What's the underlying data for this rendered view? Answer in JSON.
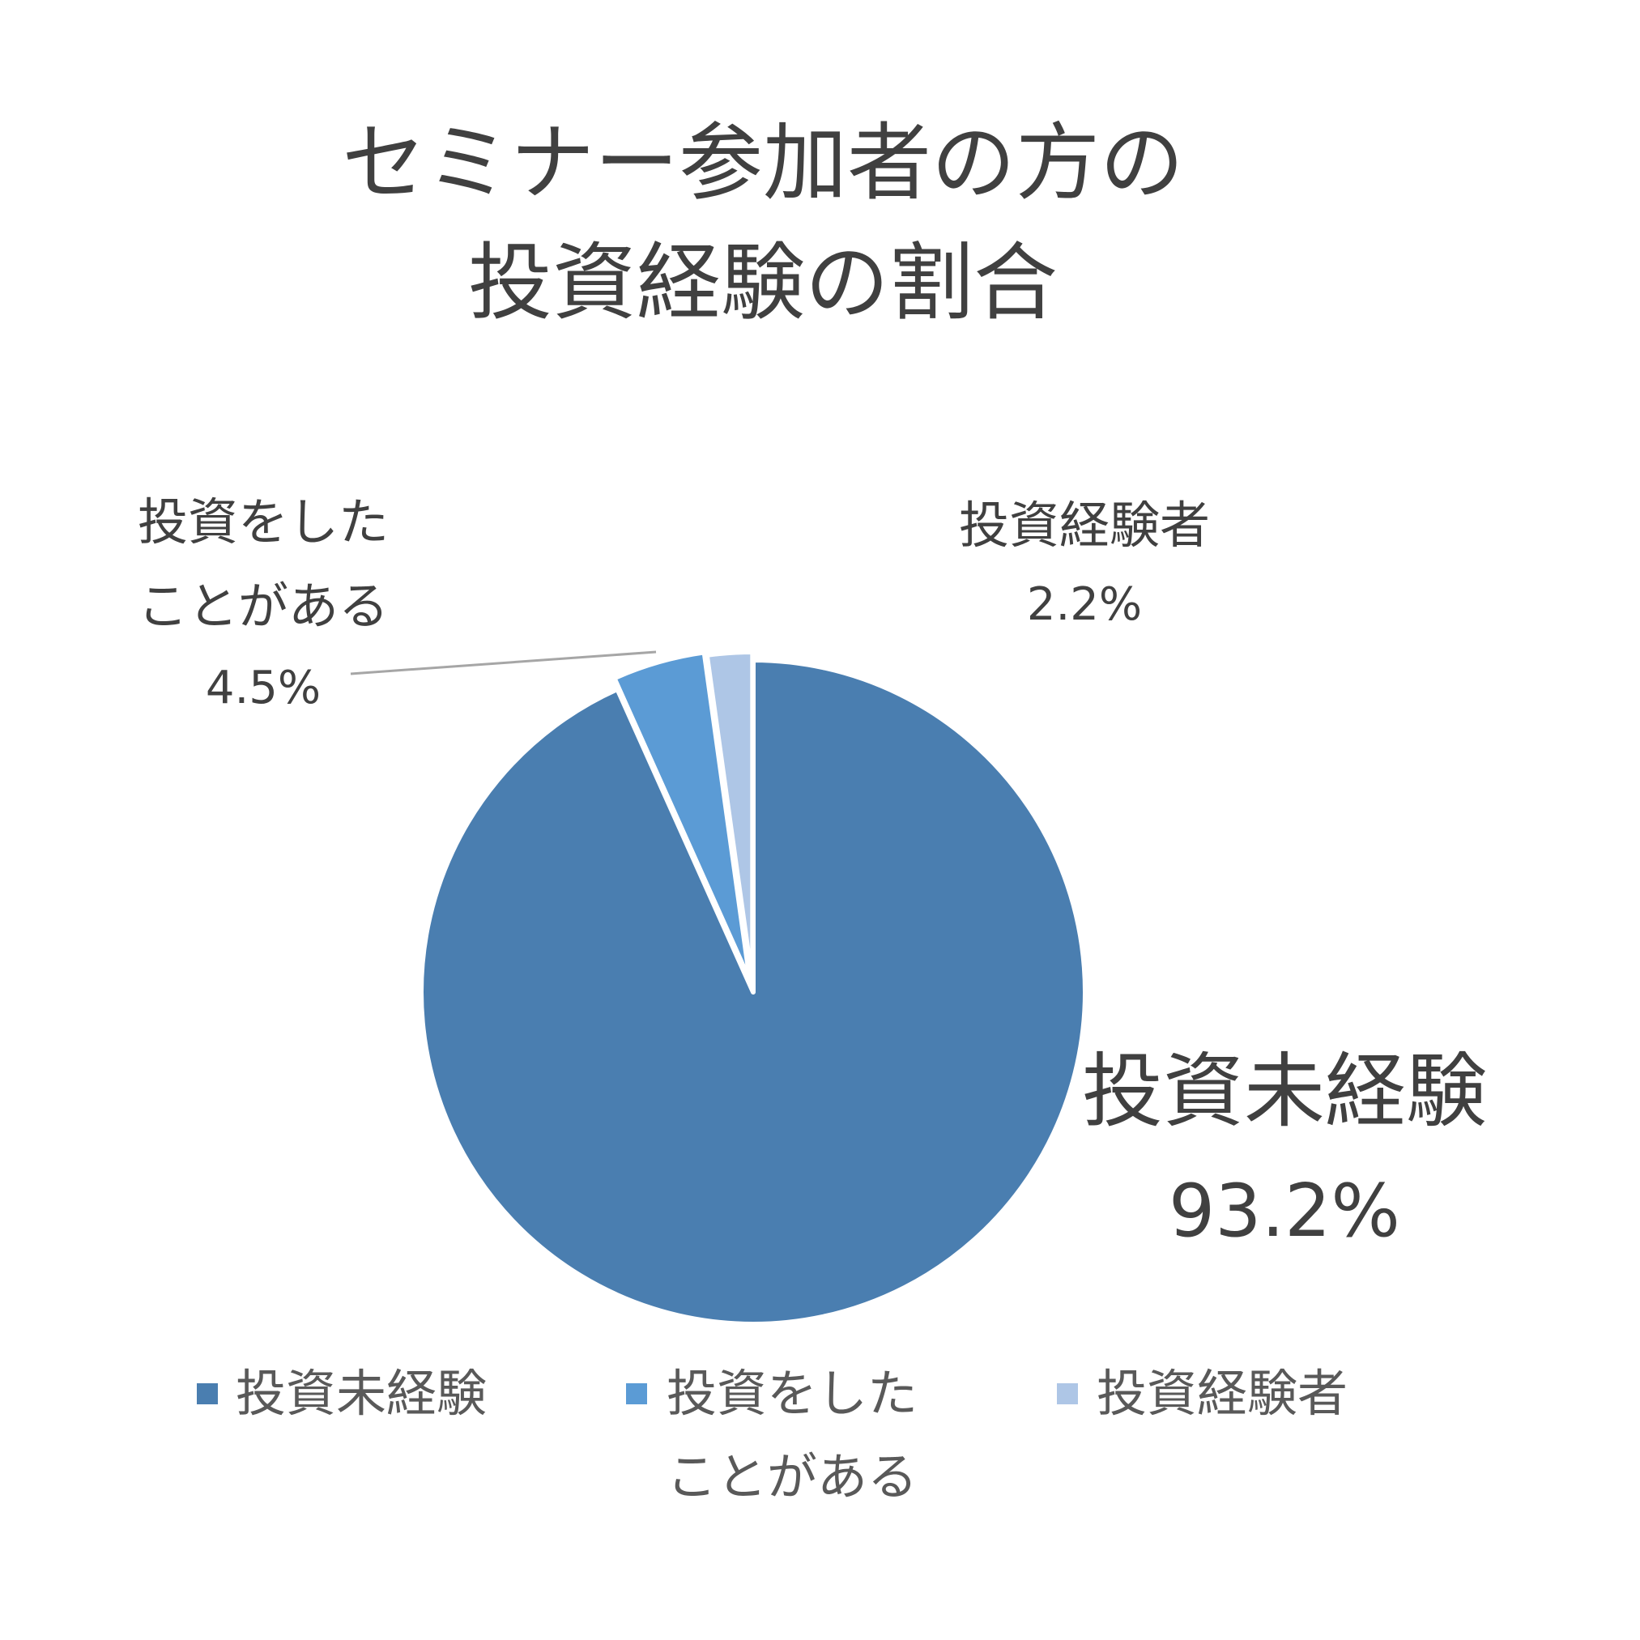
{
  "chart_data": {
    "type": "pie",
    "title_lines": [
      "セミナー参加者の方の",
      "投資経験の割合"
    ],
    "slices": [
      {
        "label_lines": [
          "投資未経験"
        ],
        "value": 93.2,
        "value_label": "93.2%",
        "color": "#4a7eb0"
      },
      {
        "label_lines": [
          "投資をした",
          "ことがある"
        ],
        "value": 4.5,
        "value_label": "4.5%",
        "color": "#5b9bd5"
      },
      {
        "label_lines": [
          "投資経験者"
        ],
        "value": 2.2,
        "value_label": "2.2%",
        "color": "#aec6e6"
      }
    ],
    "legend_placement": "bottom",
    "leader_line_color": "#a6a6a6"
  }
}
